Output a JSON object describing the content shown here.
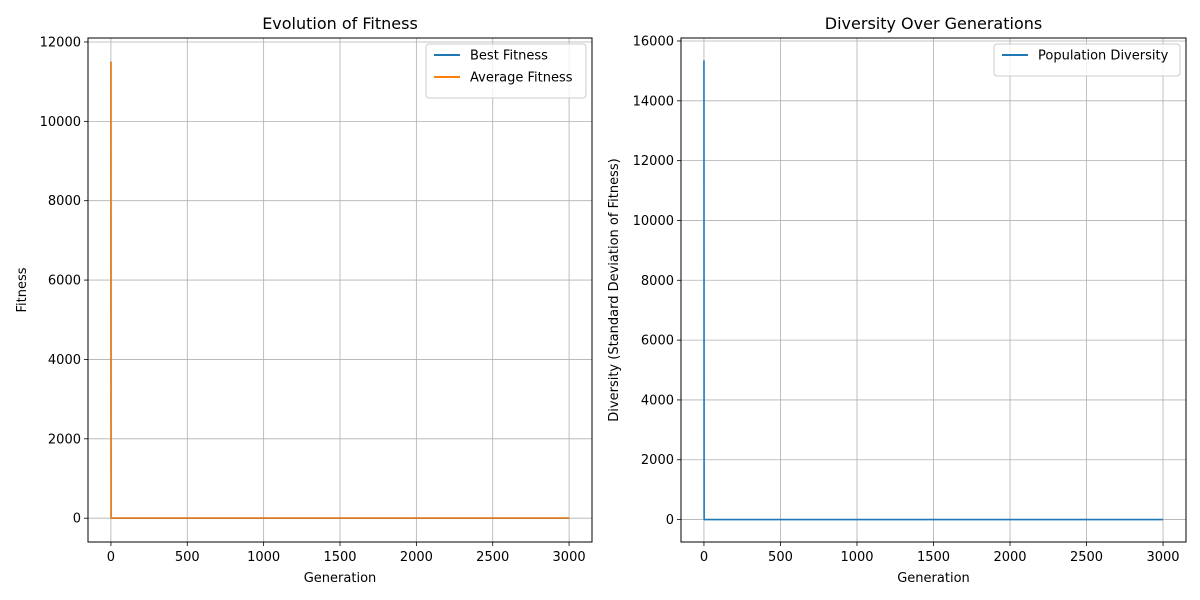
{
  "chart_data": [
    {
      "type": "line",
      "title": "Evolution of Fitness",
      "xlabel": "Generation",
      "ylabel": "Fitness",
      "xlim": [
        -150,
        3150
      ],
      "ylim": [
        -600,
        12100
      ],
      "xticks": [
        0,
        500,
        1000,
        1500,
        2000,
        2500,
        3000
      ],
      "yticks": [
        0,
        2000,
        4000,
        6000,
        8000,
        10000,
        12000
      ],
      "grid": true,
      "legend_position": "upper right",
      "series": [
        {
          "name": "Best Fitness",
          "color": "#1f77b4",
          "x": [
            0,
            1,
            2,
            3000
          ],
          "y": [
            11500,
            10,
            0,
            0
          ]
        },
        {
          "name": "Average Fitness",
          "color": "#ff7f0e",
          "x": [
            0,
            1,
            2,
            3000
          ],
          "y": [
            11500,
            15,
            5,
            5
          ]
        }
      ]
    },
    {
      "type": "line",
      "title": "Diversity Over Generations",
      "xlabel": "Generation",
      "ylabel": "Diversity (Standard Deviation of Fitness)",
      "xlim": [
        -150,
        3150
      ],
      "ylim": [
        -750,
        16100
      ],
      "xticks": [
        0,
        500,
        1000,
        1500,
        2000,
        2500,
        3000
      ],
      "yticks": [
        0,
        2000,
        4000,
        6000,
        8000,
        10000,
        12000,
        14000,
        16000
      ],
      "grid": true,
      "legend_position": "upper right",
      "series": [
        {
          "name": "Population Diversity",
          "color": "#1f77b4",
          "x": [
            0,
            1,
            2,
            3000
          ],
          "y": [
            15350,
            10,
            0,
            0
          ]
        }
      ]
    }
  ]
}
